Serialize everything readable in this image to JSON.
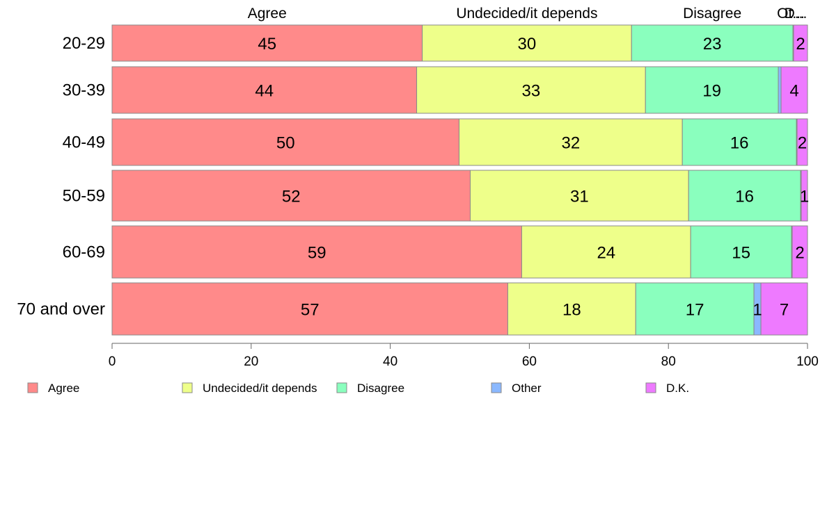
{
  "chart_data": {
    "type": "bar",
    "orientation": "horizontal",
    "stacked": true,
    "categories": [
      "20-29",
      "30-39",
      "40-49",
      "50-59",
      "60-69",
      "70 and over"
    ],
    "series": [
      {
        "name": "Agree",
        "color": "#ff8a8a",
        "values": [
          44.6,
          43.8,
          49.9,
          51.5,
          58.9,
          56.9
        ],
        "labels": [
          "45",
          "44",
          "50",
          "52",
          "59",
          "57"
        ]
      },
      {
        "name": "Undecided/it depends",
        "color": "#eeff8a",
        "values": [
          30.1,
          32.9,
          32.1,
          31.4,
          24.3,
          18.4
        ],
        "labels": [
          "30",
          "33",
          "32",
          "31",
          "24",
          "18"
        ]
      },
      {
        "name": "Disagree",
        "color": "#8affbe",
        "values": [
          23.2,
          19.1,
          16.4,
          16.1,
          14.5,
          17.0
        ],
        "labels": [
          "23",
          "19",
          "16",
          "16",
          "15",
          "17"
        ]
      },
      {
        "name": "Other",
        "color": "#8ab8ff",
        "values": [
          0.1,
          0.4,
          0.1,
          0.1,
          0.1,
          1.0
        ],
        "labels": [
          "",
          "",
          "",
          "",
          "",
          "1"
        ]
      },
      {
        "name": "D.K.",
        "color": "#ee7aff",
        "values": [
          2.0,
          3.8,
          1.5,
          0.9,
          2.2,
          6.7
        ],
        "labels": [
          "2",
          "4",
          "2",
          "1",
          "2",
          "7"
        ]
      }
    ],
    "top_labels": [
      "Agree",
      "Undecided/it depends",
      "Disagree",
      "Ot...",
      "D..."
    ],
    "xlim": [
      0,
      100
    ],
    "xticks": [
      "0",
      "20",
      "40",
      "60",
      "80",
      "100"
    ],
    "grid": false,
    "legend_position": "bottom"
  }
}
